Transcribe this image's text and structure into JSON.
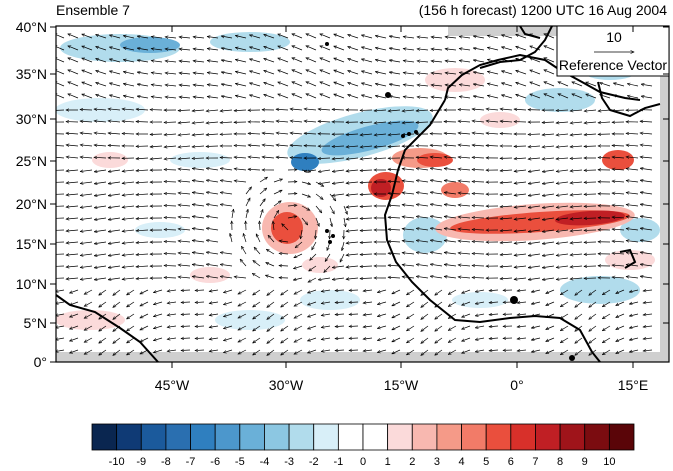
{
  "header": {
    "left_title": "Ensemble 7",
    "right_title": "(156 h forecast) 1200 UTC 16 Aug 2004"
  },
  "map": {
    "lat_labels": [
      "40°N",
      "35°N",
      "30°N",
      "25°N",
      "20°N",
      "15°N",
      "10°N",
      "5°N",
      "0°"
    ],
    "lon_labels": [
      "45°W",
      "30°W",
      "15°W",
      "0°",
      "15°E"
    ],
    "reference_vector": {
      "magnitude": "10",
      "label": "Reference Vector"
    }
  },
  "colorbar": {
    "labels": [
      "-10",
      "-9",
      "-8",
      "-7",
      "-6",
      "-5",
      "-4",
      "-3",
      "-2",
      "-1",
      "0",
      "1",
      "2",
      "3",
      "4",
      "5",
      "6",
      "7",
      "8",
      "9",
      "10"
    ],
    "colors": [
      "#0a2650",
      "#0f3a75",
      "#1b5a9c",
      "#2a6fb0",
      "#2f7fbf",
      "#4c97cc",
      "#6ab0d8",
      "#8cc7e2",
      "#b1dcec",
      "#d8eff8",
      "#ffffff",
      "#ffffff",
      "#fbdada",
      "#f8b8b0",
      "#f59a88",
      "#f27b68",
      "#ea4f3d",
      "#d8302a",
      "#c01f24",
      "#9f141a",
      "#7b0c10",
      "#5a0508"
    ]
  }
}
